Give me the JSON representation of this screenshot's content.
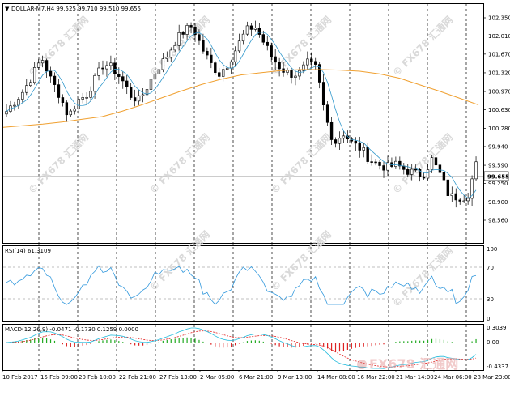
{
  "chart_header": {
    "symbol_line": "DOLLAR-M7,H4  99.525 99.710 99.510 99.655",
    "menu_glyph": "▼"
  },
  "price_panel": {
    "y_ticks": [
      "102.350",
      "102.010",
      "101.670",
      "101.320",
      "100.970",
      "100.630",
      "100.280",
      "99.940",
      "99.590",
      "99.250",
      "98.900",
      "98.560"
    ],
    "current_price": "99.655"
  },
  "rsi_panel": {
    "label": "RSI(14) 61.3109",
    "levels": [
      "100",
      "70",
      "30",
      "0"
    ]
  },
  "macd_panel": {
    "label": "MACD(12,26,9) -0.0471 -0.1730 0.1259 0.0000",
    "y_ticks": [
      "0.3039",
      "0.00",
      "-0.4337"
    ]
  },
  "time_axis": {
    "labels": [
      "10 Feb 2017",
      "15 Feb 09:00",
      "20 Feb 10:00",
      "22 Feb 21:00",
      "27 Feb 13:00",
      "2 Mar 05:00",
      "6 Mar 21:00",
      "9 Mar 13:00",
      "14 Mar 08:00",
      "16 Mar 22:00",
      "21 Mar 14:00",
      "24 Mar 06:00",
      "28 Mar 23:00"
    ]
  },
  "watermark": {
    "text": "© FX678 汇通网",
    "logo_text": "FX678 汇通网"
  },
  "colors": {
    "candle_up": "#000000",
    "ma_fast": "#3399cc",
    "ma_slow": "#f0a030",
    "rsi": "#3399dd",
    "macd_signal": "#e02020",
    "macd_main": "#22bbdd",
    "hist_pos": "#22aa22",
    "hist_neg": "#dd2222"
  },
  "chart_data": {
    "type": "candlestick",
    "price_close_path": [
      100.6,
      100.8,
      101.0,
      101.3,
      101.6,
      101.2,
      100.9,
      100.5,
      100.8,
      100.9,
      101.2,
      101.5,
      101.4,
      101.2,
      100.9,
      100.8,
      101.1,
      101.4,
      101.6,
      101.9,
      102.1,
      102.2,
      101.8,
      101.5,
      101.3,
      101.5,
      101.8,
      102.1,
      102.2,
      101.9,
      101.6,
      101.4,
      101.3,
      101.3,
      101.5,
      101.4,
      100.5,
      100.0,
      100.2,
      100.0,
      99.9,
      99.7,
      99.6,
      99.55,
      99.6,
      99.5,
      99.45,
      99.4,
      99.7,
      99.4,
      99.0,
      99.0,
      99.0,
      99.6
    ],
    "ma_slow_path": [
      100.3,
      100.33,
      100.36,
      100.4,
      100.45,
      100.5,
      100.6,
      100.72,
      100.85,
      100.98,
      101.1,
      101.2,
      101.28,
      101.32,
      101.36,
      101.38,
      101.38,
      101.37,
      101.35,
      101.3,
      101.22,
      101.1,
      100.98,
      100.85,
      100.72
    ]
  }
}
